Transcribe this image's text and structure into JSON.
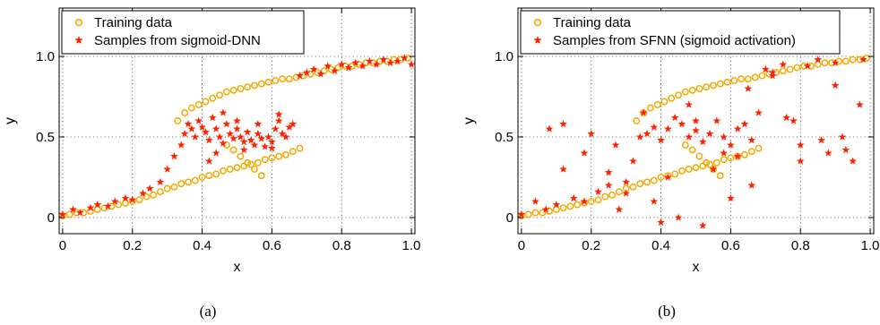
{
  "chart_data": [
    {
      "type": "scatter",
      "panel_label": "(a)",
      "xlabel": "x",
      "ylabel": "y",
      "xlim": [
        -0.01,
        1.01
      ],
      "ylim": [
        -0.1,
        1.3
      ],
      "xticks": [
        0,
        0.2,
        0.4,
        0.6,
        0.8,
        1.0
      ],
      "xtick_labels": [
        "0",
        "0.2",
        "0.4",
        "0.6",
        "0.8",
        "1.0"
      ],
      "yticks": [
        0,
        0.5,
        1.0
      ],
      "ytick_labels": [
        "0",
        "0.5",
        "1.0"
      ],
      "grid": true,
      "legend_position": "top-left",
      "series": [
        {
          "name": "Training data",
          "marker": "circle",
          "color": "#f5a800",
          "x": [
            0.0,
            0.02,
            0.04,
            0.06,
            0.08,
            0.1,
            0.12,
            0.14,
            0.16,
            0.18,
            0.2,
            0.22,
            0.24,
            0.26,
            0.28,
            0.3,
            0.32,
            0.34,
            0.36,
            0.38,
            0.4,
            0.42,
            0.44,
            0.46,
            0.48,
            0.5,
            0.52,
            0.54,
            0.56,
            0.58,
            0.6,
            0.62,
            0.64,
            0.66,
            0.68,
            0.33,
            0.35,
            0.37,
            0.39,
            0.41,
            0.43,
            0.45,
            0.47,
            0.49,
            0.51,
            0.53,
            0.55,
            0.57,
            0.59,
            0.61,
            0.63,
            0.65,
            0.67,
            0.69,
            0.71,
            0.73,
            0.75,
            0.77,
            0.79,
            0.81,
            0.83,
            0.85,
            0.87,
            0.89,
            0.91,
            0.93,
            0.95,
            0.97,
            0.99,
            0.47,
            0.49,
            0.51,
            0.53,
            0.55,
            0.57
          ],
          "y": [
            0.01,
            0.02,
            0.03,
            0.03,
            0.04,
            0.05,
            0.06,
            0.07,
            0.08,
            0.09,
            0.1,
            0.11,
            0.13,
            0.14,
            0.16,
            0.18,
            0.19,
            0.21,
            0.22,
            0.23,
            0.25,
            0.26,
            0.27,
            0.29,
            0.3,
            0.31,
            0.32,
            0.33,
            0.34,
            0.36,
            0.37,
            0.38,
            0.39,
            0.41,
            0.43,
            0.6,
            0.65,
            0.68,
            0.7,
            0.72,
            0.74,
            0.76,
            0.78,
            0.79,
            0.8,
            0.81,
            0.82,
            0.83,
            0.84,
            0.85,
            0.86,
            0.86,
            0.87,
            0.88,
            0.89,
            0.9,
            0.91,
            0.92,
            0.93,
            0.94,
            0.94,
            0.95,
            0.96,
            0.96,
            0.97,
            0.97,
            0.98,
            0.98,
            0.99,
            0.45,
            0.42,
            0.38,
            0.34,
            0.3,
            0.26
          ]
        },
        {
          "name": "Samples from sigmoid-DNN",
          "marker": "star",
          "color": "#ff2200",
          "x": [
            0.0,
            0.03,
            0.05,
            0.08,
            0.1,
            0.13,
            0.15,
            0.18,
            0.2,
            0.23,
            0.25,
            0.28,
            0.3,
            0.32,
            0.34,
            0.35,
            0.36,
            0.37,
            0.38,
            0.39,
            0.4,
            0.41,
            0.42,
            0.43,
            0.44,
            0.45,
            0.46,
            0.47,
            0.48,
            0.49,
            0.5,
            0.51,
            0.52,
            0.53,
            0.54,
            0.55,
            0.56,
            0.57,
            0.58,
            0.59,
            0.6,
            0.61,
            0.62,
            0.63,
            0.64,
            0.65,
            0.66,
            0.68,
            0.7,
            0.72,
            0.74,
            0.76,
            0.78,
            0.8,
            0.82,
            0.84,
            0.86,
            0.88,
            0.9,
            0.92,
            0.94,
            0.96,
            0.98,
            1.0,
            0.44,
            0.46,
            0.52,
            0.56,
            0.6,
            0.62,
            0.42,
            0.5
          ],
          "y": [
            0.02,
            0.05,
            0.03,
            0.06,
            0.08,
            0.07,
            0.1,
            0.12,
            0.11,
            0.15,
            0.18,
            0.22,
            0.3,
            0.38,
            0.45,
            0.52,
            0.58,
            0.55,
            0.5,
            0.6,
            0.56,
            0.53,
            0.48,
            0.62,
            0.55,
            0.5,
            0.46,
            0.58,
            0.52,
            0.49,
            0.55,
            0.5,
            0.47,
            0.53,
            0.48,
            0.45,
            0.52,
            0.49,
            0.44,
            0.5,
            0.47,
            0.55,
            0.6,
            0.52,
            0.5,
            0.56,
            0.58,
            0.88,
            0.9,
            0.92,
            0.89,
            0.94,
            0.91,
            0.95,
            0.93,
            0.96,
            0.94,
            0.97,
            0.95,
            0.98,
            0.96,
            0.97,
            0.99,
            0.95,
            0.4,
            0.65,
            0.42,
            0.58,
            0.43,
            0.64,
            0.35,
            0.6
          ]
        }
      ]
    },
    {
      "type": "scatter",
      "panel_label": "(b)",
      "xlabel": "x",
      "ylabel": "y",
      "xlim": [
        -0.01,
        1.01
      ],
      "ylim": [
        -0.1,
        1.3
      ],
      "xticks": [
        0,
        0.2,
        0.4,
        0.6,
        0.8,
        1.0
      ],
      "xtick_labels": [
        "0",
        "0.2",
        "0.4",
        "0.6",
        "0.8",
        "1.0"
      ],
      "yticks": [
        0,
        0.5,
        1.0
      ],
      "ytick_labels": [
        "0",
        "0.5",
        "1.0"
      ],
      "grid": true,
      "legend_position": "top-left",
      "series": [
        {
          "name": "Training data",
          "marker": "circle",
          "color": "#f5a800",
          "x": [
            0.0,
            0.02,
            0.04,
            0.06,
            0.08,
            0.1,
            0.12,
            0.14,
            0.16,
            0.18,
            0.2,
            0.22,
            0.24,
            0.26,
            0.28,
            0.3,
            0.32,
            0.34,
            0.36,
            0.38,
            0.4,
            0.42,
            0.44,
            0.46,
            0.48,
            0.5,
            0.52,
            0.54,
            0.56,
            0.58,
            0.6,
            0.62,
            0.64,
            0.66,
            0.68,
            0.33,
            0.35,
            0.37,
            0.39,
            0.41,
            0.43,
            0.45,
            0.47,
            0.49,
            0.51,
            0.53,
            0.55,
            0.57,
            0.59,
            0.61,
            0.63,
            0.65,
            0.67,
            0.69,
            0.71,
            0.73,
            0.75,
            0.77,
            0.79,
            0.81,
            0.83,
            0.85,
            0.87,
            0.89,
            0.91,
            0.93,
            0.95,
            0.97,
            0.99,
            0.47,
            0.49,
            0.51,
            0.53,
            0.55,
            0.57
          ],
          "y": [
            0.01,
            0.02,
            0.03,
            0.03,
            0.04,
            0.05,
            0.06,
            0.07,
            0.08,
            0.09,
            0.1,
            0.11,
            0.13,
            0.14,
            0.16,
            0.18,
            0.19,
            0.21,
            0.22,
            0.23,
            0.25,
            0.26,
            0.27,
            0.29,
            0.3,
            0.31,
            0.32,
            0.33,
            0.34,
            0.36,
            0.37,
            0.38,
            0.39,
            0.41,
            0.43,
            0.6,
            0.65,
            0.68,
            0.7,
            0.72,
            0.74,
            0.76,
            0.78,
            0.79,
            0.8,
            0.81,
            0.82,
            0.83,
            0.84,
            0.85,
            0.86,
            0.86,
            0.87,
            0.88,
            0.89,
            0.9,
            0.91,
            0.92,
            0.93,
            0.94,
            0.94,
            0.95,
            0.96,
            0.96,
            0.97,
            0.97,
            0.98,
            0.98,
            0.99,
            0.45,
            0.42,
            0.38,
            0.34,
            0.3,
            0.26
          ]
        },
        {
          "name": "Samples from SFNN (sigmoid activation)",
          "marker": "star",
          "color": "#ff2200",
          "x": [
            0.0,
            0.04,
            0.07,
            0.1,
            0.12,
            0.15,
            0.18,
            0.2,
            0.22,
            0.25,
            0.28,
            0.3,
            0.32,
            0.34,
            0.36,
            0.38,
            0.4,
            0.42,
            0.44,
            0.46,
            0.48,
            0.5,
            0.52,
            0.54,
            0.56,
            0.58,
            0.6,
            0.62,
            0.64,
            0.66,
            0.68,
            0.7,
            0.72,
            0.75,
            0.78,
            0.8,
            0.82,
            0.85,
            0.88,
            0.9,
            0.92,
            0.95,
            0.98,
            0.12,
            0.18,
            0.25,
            0.3,
            0.38,
            0.45,
            0.52,
            0.6,
            0.66,
            0.72,
            0.8,
            0.86,
            0.93,
            0.35,
            0.42,
            0.48,
            0.55,
            0.62,
            0.97,
            0.9,
            0.08,
            0.4,
            0.5,
            0.58,
            0.65,
            0.27,
            0.76
          ],
          "y": [
            0.02,
            0.1,
            0.05,
            0.08,
            0.58,
            0.12,
            0.1,
            0.52,
            0.16,
            0.2,
            0.05,
            0.22,
            0.35,
            0.5,
            0.52,
            0.56,
            0.48,
            0.55,
            0.62,
            0.58,
            0.5,
            0.54,
            0.47,
            0.52,
            0.6,
            0.5,
            0.45,
            0.55,
            0.58,
            0.48,
            0.65,
            0.92,
            0.88,
            0.95,
            0.6,
            0.45,
            0.94,
            0.98,
            0.4,
            0.96,
            0.5,
            0.35,
            0.98,
            0.3,
            0.4,
            0.28,
            0.15,
            0.1,
            0.0,
            -0.05,
            0.12,
            0.2,
            0.9,
            0.35,
            0.48,
            0.42,
            0.65,
            0.25,
            0.7,
            0.3,
            0.38,
            0.7,
            0.82,
            0.55,
            -0.03,
            0.6,
            0.4,
            0.8,
            0.45,
            0.62
          ]
        }
      ]
    }
  ]
}
